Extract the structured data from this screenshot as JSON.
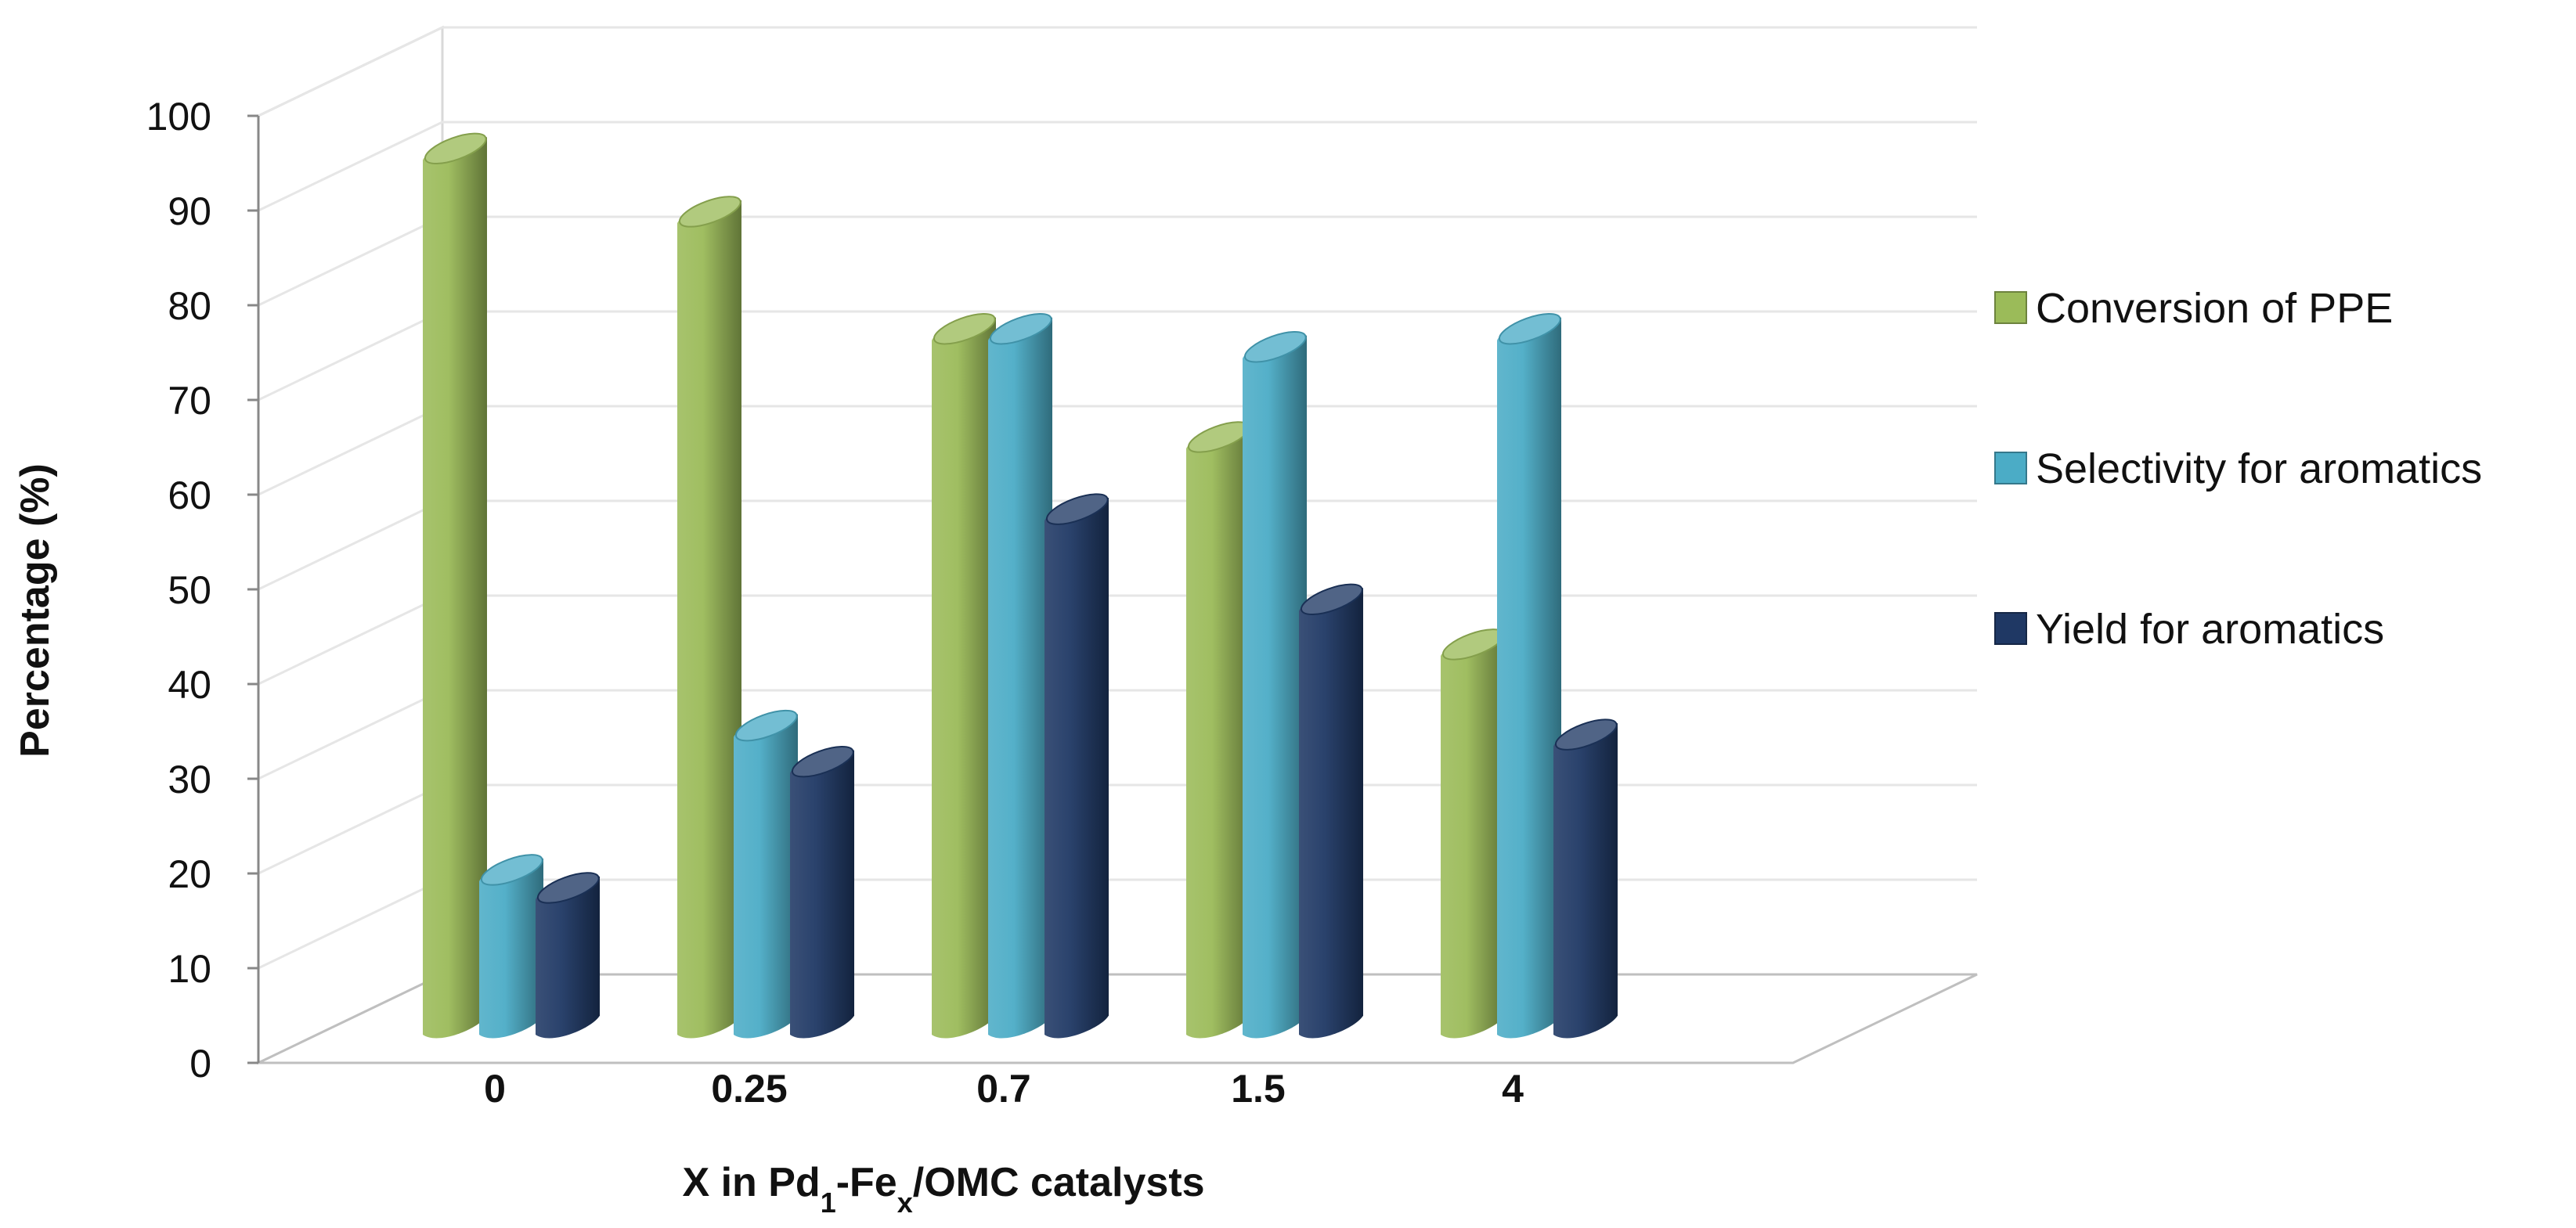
{
  "chart_data": {
    "type": "bar",
    "style": "3d-cylinder",
    "title": "",
    "xlabel_parts": {
      "prefix": "X in Pd",
      "sub1": "1",
      "mid": "-Fe",
      "sub2": "x",
      "suffix": "/OMC catalysts"
    },
    "ylabel": "Percentage (%)",
    "ylim": [
      0,
      100
    ],
    "yticks": [
      "0",
      "10",
      "20",
      "30",
      "40",
      "50",
      "60",
      "70",
      "80",
      "90",
      "100"
    ],
    "categories": [
      "0",
      "0.25",
      "0.7",
      "1.5",
      "4"
    ],
    "series": [
      {
        "name": "Conversion  of PPE",
        "color": "#9bbb59",
        "values": [
          97,
          90,
          77,
          65,
          42
        ]
      },
      {
        "name": "Selectivity for aromatics",
        "color": "#4bacc6",
        "values": [
          17,
          33,
          77,
          75,
          77
        ]
      },
      {
        "name": "Yield for aromatics",
        "color": "#1f3864",
        "values": [
          15,
          29,
          57,
          47,
          32
        ]
      }
    ],
    "grid": true,
    "legend_position": "right"
  }
}
